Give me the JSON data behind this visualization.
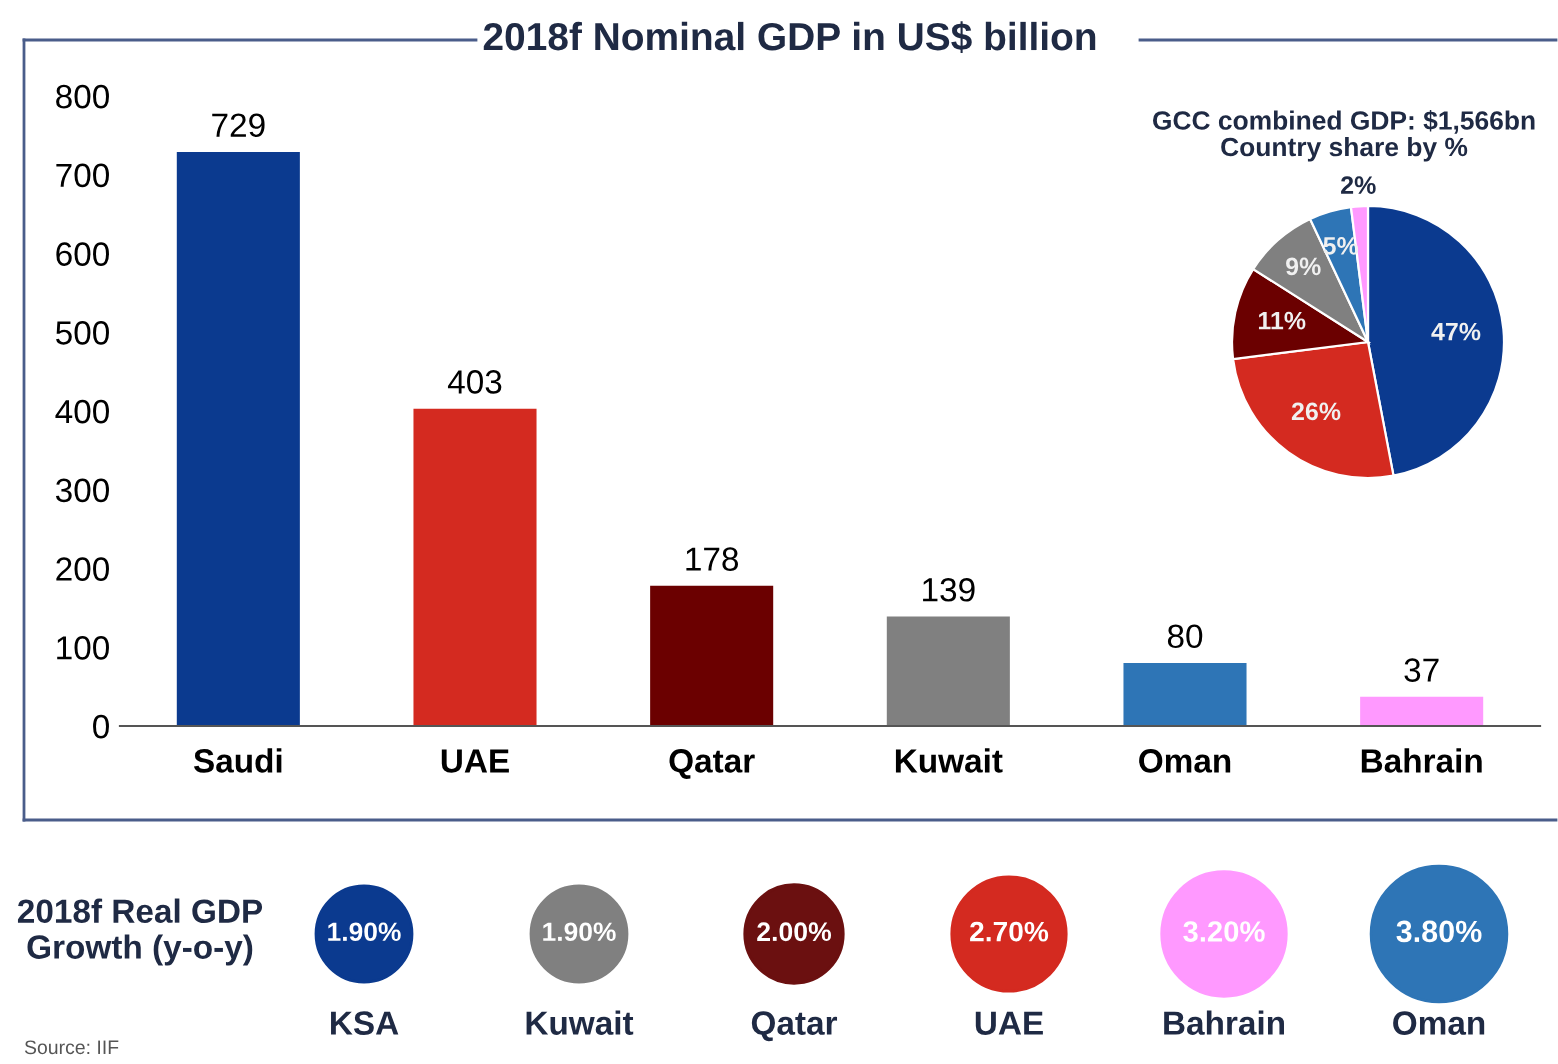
{
  "chart_data": [
    {
      "type": "bar",
      "title": "2018f Nominal GDP in US$ billion",
      "categories": [
        "Saudi",
        "UAE",
        "Qatar",
        "Kuwait",
        "Oman",
        "Bahrain"
      ],
      "values": [
        729,
        403,
        178,
        139,
        80,
        37
      ],
      "colors": [
        "#0b3a8f",
        "#d42a20",
        "#6b0000",
        "#808080",
        "#2e75b6",
        "#ff99ff"
      ],
      "ylim": [
        0,
        800
      ],
      "yticks": [
        0,
        100,
        200,
        300,
        400,
        500,
        600,
        700,
        800
      ],
      "data_labels": true,
      "grid": false,
      "legend": false
    },
    {
      "type": "pie",
      "title": "GCC combined GDP: $1,566bn\nCountry share by %",
      "categories": [
        null,
        null,
        null,
        null,
        null,
        null
      ],
      "values": [
        47,
        26,
        11,
        9,
        5,
        2
      ],
      "colors": [
        "#0b3a8f",
        "#d42a20",
        "#6b0000",
        "#808080",
        "#2e75b6",
        "#ff99ff"
      ],
      "value_labels": [
        "47%",
        "26%",
        "11%",
        "9%",
        "5%",
        "2%"
      ]
    },
    {
      "type": "other",
      "title": "2018f Real GDP\nGrowth (y-o-y)",
      "categories": [
        "KSA",
        "Kuwait",
        "Qatar",
        "UAE",
        "Bahrain",
        "Oman"
      ],
      "values": [
        1.9,
        1.9,
        2.0,
        2.7,
        3.2,
        3.8
      ],
      "value_labels": [
        "1.90%",
        "1.90%",
        "2.00%",
        "2.70%",
        "3.20%",
        "3.80%"
      ],
      "colors": [
        "#0b3a8f",
        "#808080",
        "#6b1010",
        "#d42a20",
        "#ff99ff",
        "#2e75b6"
      ],
      "annotations": [
        "Source: IIF"
      ]
    }
  ]
}
